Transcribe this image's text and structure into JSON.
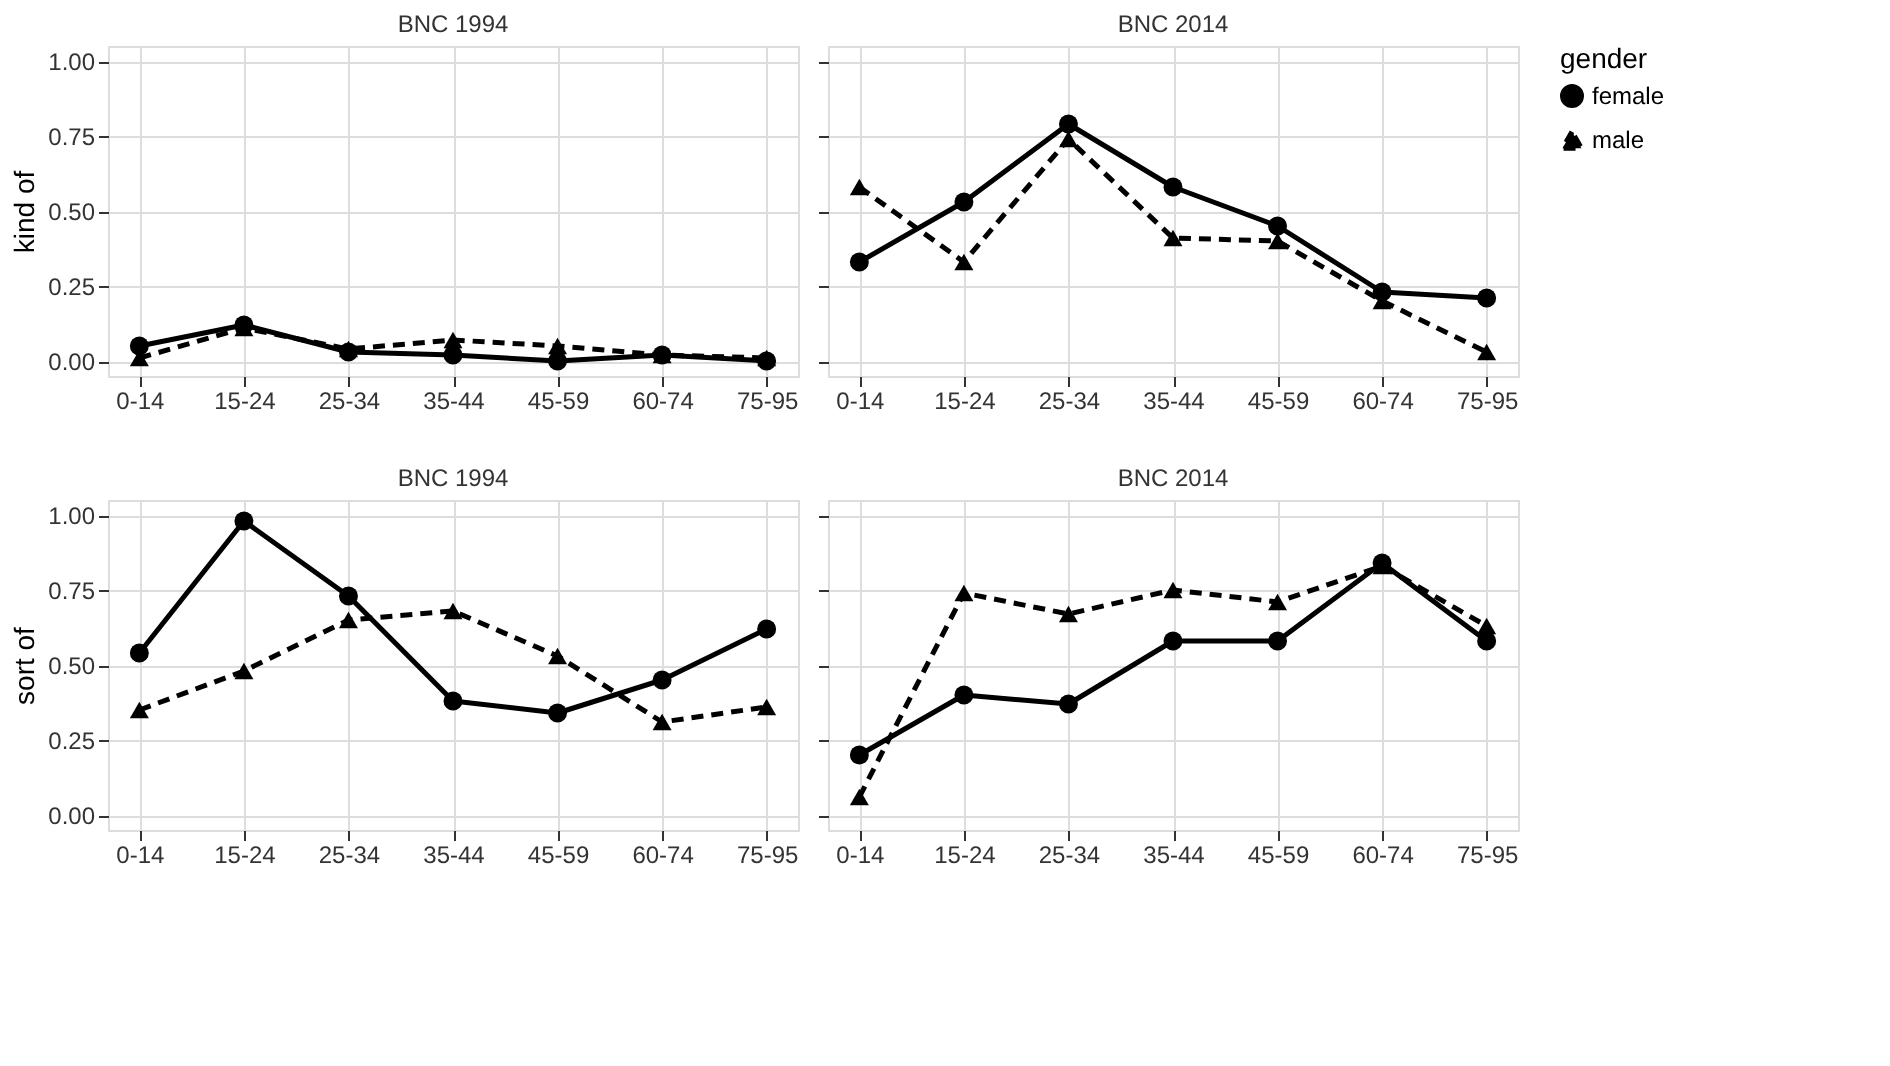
{
  "chart_data": [
    {
      "type": "line",
      "title": "BNC 1994",
      "ylabel": "kind of",
      "categories": [
        "0-14",
        "15-24",
        "25-34",
        "35-44",
        "45-59",
        "60-74",
        "75-95"
      ],
      "ylim": [
        -0.05,
        1.05
      ],
      "yticks": [
        {
          "value": 0,
          "label": "0.00"
        },
        {
          "value": 0.25,
          "label": "0.25"
        },
        {
          "value": 0.5,
          "label": "0.50"
        },
        {
          "value": 0.75,
          "label": "0.75"
        },
        {
          "value": 1,
          "label": "1.00"
        }
      ],
      "grid": true,
      "legend": "right",
      "legend_title": "gender",
      "series": [
        {
          "name": "female",
          "color": "#000000",
          "marker": "circle",
          "line_style": "solid",
          "values": [
            0.05,
            0.12,
            0.03,
            0.02,
            0.0,
            0.02,
            0.0
          ]
        },
        {
          "name": "male",
          "color": "#000000",
          "marker": "triangle",
          "line_style": "dashed",
          "values": [
            0.01,
            0.11,
            0.04,
            0.07,
            0.05,
            0.02,
            0.01
          ]
        }
      ]
    },
    {
      "type": "line",
      "title": "BNC 2014",
      "categories": [
        "0-14",
        "15-24",
        "25-34",
        "35-44",
        "45-59",
        "60-74",
        "75-95"
      ],
      "ylim": [
        -0.05,
        1.05
      ],
      "yticks": [
        {
          "value": 0,
          "label": "0.00"
        },
        {
          "value": 0.25,
          "label": "0.25"
        },
        {
          "value": 0.5,
          "label": "0.50"
        },
        {
          "value": 0.75,
          "label": "0.75"
        },
        {
          "value": 1,
          "label": "1.00"
        }
      ],
      "grid": true,
      "tick_labels": "x",
      "series": [
        {
          "name": "female",
          "color": "#000000",
          "marker": "circle",
          "line_style": "solid",
          "values": [
            0.33,
            0.53,
            0.79,
            0.58,
            0.45,
            0.23,
            0.21
          ]
        },
        {
          "name": "male",
          "color": "#000000",
          "marker": "triangle",
          "line_style": "dashed",
          "values": [
            0.58,
            0.33,
            0.74,
            0.41,
            0.4,
            0.2,
            0.03
          ]
        }
      ]
    },
    {
      "type": "line",
      "title": "BNC 1994",
      "ylabel": "sort of",
      "categories": [
        "0-14",
        "15-24",
        "25-34",
        "35-44",
        "45-59",
        "60-74",
        "75-95"
      ],
      "ylim": [
        -0.05,
        1.05
      ],
      "yticks": [
        {
          "value": 0,
          "label": "0.00"
        },
        {
          "value": 0.25,
          "label": "0.25"
        },
        {
          "value": 0.5,
          "label": "0.50"
        },
        {
          "value": 0.75,
          "label": "0.75"
        },
        {
          "value": 1,
          "label": "1.00"
        }
      ],
      "grid": true,
      "series": [
        {
          "name": "female",
          "color": "#000000",
          "marker": "circle",
          "line_style": "solid",
          "values": [
            0.54,
            0.98,
            0.73,
            0.38,
            0.34,
            0.45,
            0.62
          ]
        },
        {
          "name": "male",
          "color": "#000000",
          "marker": "triangle",
          "line_style": "dashed",
          "values": [
            0.35,
            0.48,
            0.65,
            0.68,
            0.53,
            0.31,
            0.36
          ]
        }
      ]
    },
    {
      "type": "line",
      "title": "BNC 2014",
      "categories": [
        "0-14",
        "15-24",
        "25-34",
        "35-44",
        "45-59",
        "60-74",
        "75-95"
      ],
      "ylim": [
        -0.05,
        1.05
      ],
      "yticks": [
        {
          "value": 0,
          "label": "0.00"
        },
        {
          "value": 0.25,
          "label": "0.25"
        },
        {
          "value": 0.5,
          "label": "0.50"
        },
        {
          "value": 0.75,
          "label": "0.75"
        },
        {
          "value": 1,
          "label": "1.00"
        }
      ],
      "grid": true,
      "tick_labels": "x",
      "series": [
        {
          "name": "female",
          "color": "#000000",
          "marker": "circle",
          "line_style": "solid",
          "values": [
            0.2,
            0.4,
            0.37,
            0.58,
            0.58,
            0.84,
            0.58
          ]
        },
        {
          "name": "male",
          "color": "#000000",
          "marker": "triangle",
          "line_style": "dashed",
          "values": [
            0.06,
            0.74,
            0.67,
            0.75,
            0.71,
            0.83,
            0.63
          ]
        }
      ]
    }
  ]
}
